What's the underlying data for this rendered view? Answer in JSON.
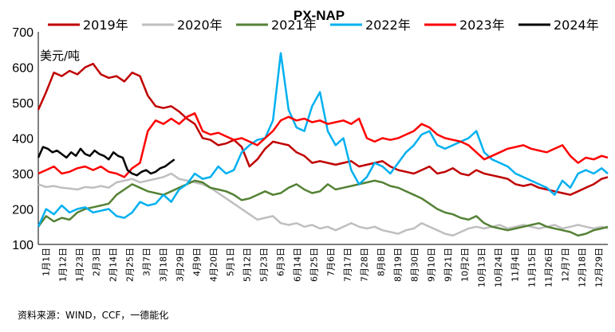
{
  "chart_data": {
    "type": "line",
    "title": "PX-NAP",
    "unit_label": "美元/吨",
    "source_note": "资料来源：WIND，CCF，一德能化",
    "ylim": [
      100,
      700
    ],
    "yticks": [
      100,
      200,
      300,
      400,
      500,
      600,
      700
    ],
    "x_tick_labels": [
      "1月1日",
      "1月12日",
      "1月23日",
      "2月3日",
      "2月14日",
      "2月25日",
      "3月7日",
      "3月18日",
      "3月29日",
      "4月9日",
      "4月20日",
      "5月1日",
      "5月12日",
      "5月23日",
      "6月3日",
      "6月14日",
      "6月25日",
      "7月6日",
      "7月17日",
      "7月28日",
      "8月8日",
      "8月19日",
      "8月30日",
      "9月10日",
      "9月21日",
      "10月2日",
      "10月13日",
      "10月24日",
      "11月4日",
      "11月15日",
      "11月26日",
      "12月7日",
      "12月18日",
      "12月29日"
    ],
    "x_day_range": [
      1,
      365
    ],
    "legend_placement": "top",
    "series": [
      {
        "name": "2019年",
        "color": "#c00000",
        "x": [
          1,
          6,
          11,
          16,
          21,
          26,
          31,
          36,
          41,
          46,
          51,
          56,
          61,
          66,
          71,
          76,
          81,
          86,
          91,
          96,
          101,
          106,
          111,
          116,
          121,
          126,
          131,
          136,
          141,
          146,
          151,
          156,
          161,
          166,
          171,
          176,
          181,
          186,
          191,
          196,
          201,
          206,
          211,
          216,
          221,
          226,
          231,
          236,
          241,
          246,
          251,
          256,
          261,
          266,
          271,
          276,
          281,
          286,
          291,
          296,
          301,
          306,
          311,
          316,
          321,
          326,
          331,
          336,
          341,
          346,
          351,
          356,
          361,
          365
        ],
        "y": [
          480,
          530,
          585,
          575,
          590,
          580,
          600,
          610,
          580,
          570,
          575,
          560,
          585,
          575,
          520,
          490,
          485,
          490,
          475,
          455,
          440,
          400,
          395,
          380,
          385,
          395,
          375,
          320,
          340,
          370,
          390,
          385,
          380,
          360,
          350,
          330,
          335,
          330,
          325,
          330,
          335,
          320,
          325,
          330,
          335,
          320,
          310,
          305,
          300,
          310,
          320,
          300,
          305,
          315,
          300,
          295,
          310,
          300,
          295,
          290,
          285,
          270,
          265,
          270,
          260,
          255,
          250,
          245,
          240,
          250,
          260,
          270,
          285,
          290
        ]
      },
      {
        "name": "2020年",
        "color": "#bfbfbf",
        "x": [
          1,
          6,
          11,
          16,
          21,
          26,
          31,
          36,
          41,
          46,
          51,
          56,
          61,
          66,
          71,
          76,
          81,
          86,
          91,
          96,
          101,
          106,
          111,
          116,
          121,
          126,
          131,
          136,
          141,
          146,
          151,
          156,
          161,
          166,
          171,
          176,
          181,
          186,
          191,
          196,
          201,
          206,
          211,
          216,
          221,
          226,
          231,
          236,
          241,
          246,
          251,
          256,
          261,
          266,
          271,
          276,
          281,
          286,
          291,
          296,
          301,
          306,
          311,
          316,
          321,
          326,
          331,
          336,
          341,
          346,
          351,
          356,
          361,
          365
        ],
        "y": [
          270,
          262,
          265,
          260,
          258,
          255,
          262,
          260,
          265,
          260,
          275,
          280,
          285,
          275,
          280,
          285,
          290,
          300,
          285,
          280,
          275,
          270,
          260,
          245,
          230,
          215,
          200,
          185,
          170,
          175,
          180,
          160,
          155,
          160,
          150,
          155,
          145,
          150,
          140,
          150,
          160,
          150,
          145,
          150,
          140,
          135,
          130,
          140,
          145,
          160,
          150,
          140,
          130,
          125,
          135,
          145,
          150,
          145,
          150,
          155,
          145,
          150,
          155,
          150,
          145,
          150,
          155,
          145,
          150,
          155,
          150,
          145,
          150,
          145
        ]
      },
      {
        "name": "2021年",
        "color": "#548235",
        "x": [
          1,
          6,
          11,
          16,
          21,
          26,
          31,
          36,
          41,
          46,
          51,
          56,
          61,
          66,
          71,
          76,
          81,
          86,
          91,
          96,
          101,
          106,
          111,
          116,
          121,
          126,
          131,
          136,
          141,
          146,
          151,
          156,
          161,
          166,
          171,
          176,
          181,
          186,
          191,
          196,
          201,
          206,
          211,
          216,
          221,
          226,
          231,
          236,
          241,
          246,
          251,
          256,
          261,
          266,
          271,
          276,
          281,
          286,
          291,
          296,
          301,
          306,
          311,
          316,
          321,
          326,
          331,
          336,
          341,
          346,
          351,
          356,
          361,
          365
        ],
        "y": [
          150,
          180,
          165,
          175,
          170,
          190,
          200,
          205,
          210,
          215,
          240,
          255,
          270,
          260,
          250,
          245,
          240,
          250,
          260,
          270,
          280,
          275,
          260,
          255,
          250,
          240,
          225,
          230,
          240,
          250,
          240,
          245,
          260,
          270,
          255,
          245,
          250,
          270,
          255,
          260,
          265,
          270,
          275,
          280,
          275,
          265,
          260,
          250,
          240,
          230,
          215,
          200,
          190,
          185,
          175,
          170,
          180,
          160,
          150,
          145,
          140,
          145,
          150,
          155,
          160,
          150,
          145,
          140,
          135,
          125,
          130,
          140,
          145,
          150
        ]
      },
      {
        "name": "2022年",
        "color": "#00b0f0",
        "x": [
          1,
          6,
          11,
          16,
          21,
          26,
          31,
          36,
          41,
          46,
          51,
          56,
          61,
          66,
          71,
          76,
          81,
          86,
          91,
          96,
          101,
          106,
          111,
          116,
          121,
          126,
          131,
          136,
          141,
          146,
          151,
          156,
          161,
          166,
          171,
          176,
          181,
          186,
          191,
          196,
          201,
          206,
          211,
          216,
          221,
          226,
          231,
          236,
          241,
          246,
          251,
          256,
          261,
          266,
          271,
          276,
          281,
          286,
          291,
          296,
          301,
          306,
          311,
          316,
          321,
          326,
          331,
          336,
          341,
          346,
          351,
          356,
          361,
          365
        ],
        "y": [
          150,
          200,
          185,
          210,
          190,
          200,
          205,
          190,
          195,
          200,
          180,
          175,
          190,
          220,
          210,
          215,
          240,
          220,
          255,
          270,
          300,
          285,
          290,
          320,
          300,
          310,
          360,
          380,
          395,
          400,
          450,
          640,
          480,
          430,
          420,
          490,
          530,
          420,
          380,
          400,
          310,
          270,
          290,
          330,
          320,
          300,
          330,
          360,
          380,
          410,
          420,
          380,
          370,
          380,
          390,
          400,
          420,
          360,
          340,
          330,
          320,
          300,
          290,
          280,
          270,
          260,
          240,
          280,
          260,
          300,
          310,
          300,
          315,
          300
        ]
      },
      {
        "name": "2023年",
        "color": "#ff0000",
        "x": [
          1,
          6,
          11,
          16,
          21,
          26,
          31,
          36,
          41,
          46,
          51,
          56,
          61,
          66,
          71,
          76,
          81,
          86,
          91,
          96,
          101,
          106,
          111,
          116,
          121,
          126,
          131,
          136,
          141,
          146,
          151,
          156,
          161,
          166,
          171,
          176,
          181,
          186,
          191,
          196,
          201,
          206,
          211,
          216,
          221,
          226,
          231,
          236,
          241,
          246,
          251,
          256,
          261,
          266,
          271,
          276,
          281,
          286,
          291,
          296,
          301,
          306,
          311,
          316,
          321,
          326,
          331,
          336,
          341,
          346,
          351,
          356,
          361,
          365
        ],
        "y": [
          300,
          310,
          320,
          300,
          305,
          315,
          320,
          310,
          320,
          305,
          300,
          290,
          315,
          330,
          420,
          450,
          440,
          455,
          440,
          460,
          470,
          420,
          410,
          415,
          405,
          395,
          400,
          390,
          380,
          400,
          420,
          450,
          460,
          450,
          455,
          445,
          450,
          440,
          445,
          450,
          440,
          455,
          400,
          390,
          400,
          395,
          400,
          410,
          420,
          440,
          430,
          410,
          400,
          395,
          390,
          380,
          360,
          340,
          350,
          360,
          370,
          375,
          380,
          370,
          365,
          360,
          370,
          380,
          350,
          330,
          345,
          340,
          350,
          345
        ]
      },
      {
        "name": "2024年",
        "color": "#000000",
        "x": [
          1,
          4,
          7,
          10,
          13,
          16,
          19,
          22,
          25,
          28,
          31,
          34,
          37,
          40,
          43,
          46,
          49,
          52,
          55,
          58,
          61,
          64,
          67,
          70,
          73,
          76,
          79,
          82,
          85,
          88
        ],
        "y": [
          345,
          375,
          370,
          360,
          365,
          355,
          345,
          360,
          350,
          370,
          355,
          350,
          365,
          355,
          350,
          340,
          360,
          350,
          345,
          310,
          300,
          295,
          305,
          310,
          300,
          305,
          315,
          320,
          330,
          340
        ]
      }
    ]
  }
}
